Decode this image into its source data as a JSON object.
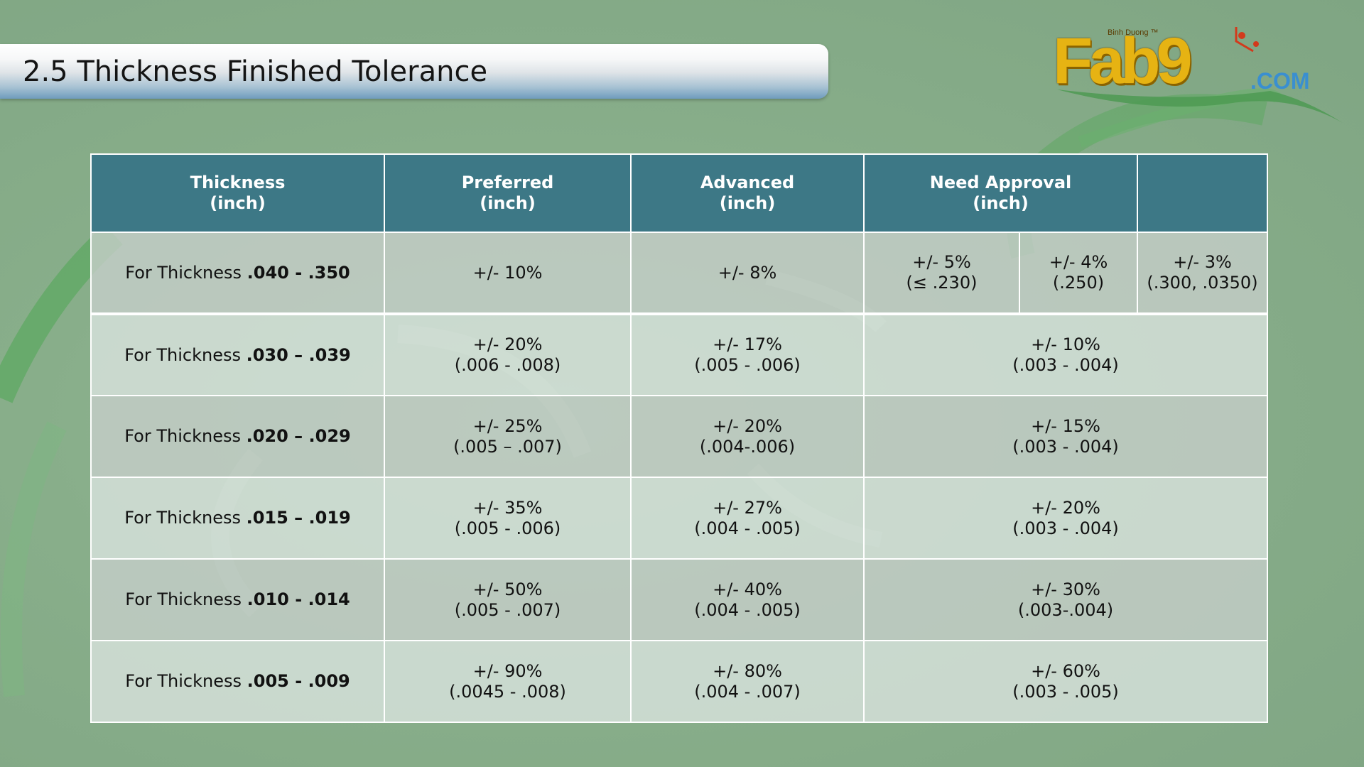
{
  "title": "2.5 Thickness Finished Tolerance",
  "logo": {
    "word": "Fab9",
    "subtitle": "Binh Duong ™",
    "suffix": ".COM"
  },
  "colors": {
    "header_bg": "#3d7886",
    "background": "#88ae8a",
    "logo_gold": "#e6b313",
    "logo_blue": "#3a8fd0"
  },
  "table": {
    "headers": [
      {
        "line1": "Thickness",
        "line2": "(inch)"
      },
      {
        "line1": "Preferred",
        "line2": "(inch)"
      },
      {
        "line1": "Advanced",
        "line2": "(inch)"
      },
      {
        "line1": "Need Approval",
        "line2": "(inch)"
      }
    ],
    "rows": [
      {
        "lead": "For Thickness ",
        "range": ".040 - .350",
        "preferred": {
          "line1": "+/- 10%",
          "line2": ""
        },
        "advanced": {
          "line1": "+/- 8%",
          "line2": ""
        },
        "approval": [
          {
            "line1": "+/- 5%",
            "line2": "(≤ .230)"
          },
          {
            "line1": "+/- 4%",
            "line2": "(.250)"
          },
          {
            "line1": "+/- 3%",
            "line2": "(.300, .0350)"
          }
        ]
      },
      {
        "lead": "For Thickness ",
        "range": ".030 – .039",
        "preferred": {
          "line1": "+/- 20%",
          "line2": "(.006  - .008)"
        },
        "advanced": {
          "line1": "+/- 17%",
          "line2": "(.005 - .006)"
        },
        "approval": [
          {
            "line1": "+/- 10%",
            "line2": "(.003 - .004)"
          }
        ]
      },
      {
        "lead": "For Thickness ",
        "range": ".020 – .029",
        "preferred": {
          "line1": "+/- 25%",
          "line2": "(.005 – .007)"
        },
        "advanced": {
          "line1": "+/- 20%",
          "line2": "(.004-.006)"
        },
        "approval": [
          {
            "line1": "+/- 15%",
            "line2": "(.003 - .004)"
          }
        ]
      },
      {
        "lead": "For Thickness ",
        "range": ".015 – .019",
        "preferred": {
          "line1": "+/- 35%",
          "line2": "(.005 - .006)"
        },
        "advanced": {
          "line1": "+/- 27%",
          "line2": "(.004 - .005)"
        },
        "approval": [
          {
            "line1": "+/- 20%",
            "line2": "(.003 - .004)"
          }
        ]
      },
      {
        "lead": "For Thickness ",
        "range": ".010 - .014",
        "preferred": {
          "line1": "+/- 50%",
          "line2": "(.005 - .007)"
        },
        "advanced": {
          "line1": "+/- 40%",
          "line2": "(.004 - .005)"
        },
        "approval": [
          {
            "line1": "+/- 30%",
            "line2": "(.003-.004)"
          }
        ]
      },
      {
        "lead": "For Thickness ",
        "range": ".005 - .009",
        "preferred": {
          "line1": "+/- 90%",
          "line2": "(.0045 - .008)"
        },
        "advanced": {
          "line1": "+/- 80%",
          "line2": "(.004 - .007)"
        },
        "approval": [
          {
            "line1": "+/- 60%",
            "line2": "(.003 - .005)"
          }
        ]
      }
    ]
  }
}
